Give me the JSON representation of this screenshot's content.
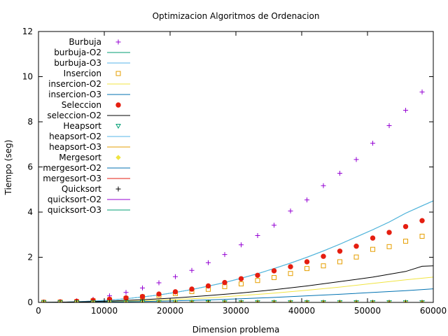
{
  "chart_data": {
    "type": "scatter",
    "title": "Optimizacion Algoritmos de Ordenacion",
    "xlabel": "Dimension problema",
    "ylabel": "Tiempo (seg)",
    "xlim": [
      0,
      60000
    ],
    "ylim": [
      0,
      12
    ],
    "xticks": [
      0,
      10000,
      20000,
      30000,
      40000,
      50000,
      60000
    ],
    "yticks": [
      0,
      2,
      4,
      6,
      8,
      10,
      12
    ],
    "grid": false,
    "legend_position": "top-left",
    "series": [
      {
        "name": "Burbuja",
        "style": "points",
        "marker": "plus",
        "color": "#9400d3",
        "x": [
          800,
          3300,
          5800,
          8300,
          10800,
          13300,
          15800,
          18300,
          20800,
          23300,
          25800,
          28300,
          30800,
          33300,
          35800,
          38300,
          40800,
          43300,
          45800,
          48300,
          50800,
          53300,
          55800,
          58300
        ],
        "y": [
          0.005,
          0.025,
          0.07,
          0.13,
          0.29,
          0.44,
          0.64,
          0.87,
          1.14,
          1.42,
          1.76,
          2.12,
          2.55,
          2.96,
          3.42,
          4.05,
          4.54,
          5.17,
          5.72,
          6.33,
          7.05,
          7.83,
          8.51,
          9.32
        ]
      },
      {
        "name": "burbuja-O2",
        "style": "line",
        "color": "#009e73",
        "x": [
          800,
          3300,
          5800,
          8300,
          10800,
          13300,
          15800,
          18300,
          20800,
          23300,
          25800,
          28300,
          30800,
          33300,
          35800,
          38300,
          40800,
          43300,
          45800,
          48300,
          50800,
          53300,
          55800,
          58300,
          60000
        ],
        "y": [
          0.002,
          0.01,
          0.03,
          0.06,
          0.1,
          0.16,
          0.24,
          0.33,
          0.44,
          0.57,
          0.72,
          0.88,
          1.07,
          1.27,
          1.5,
          1.74,
          2.0,
          2.28,
          2.58,
          2.9,
          3.22,
          3.56,
          3.95,
          4.28,
          4.5
        ]
      },
      {
        "name": "burbuja-O3",
        "style": "line",
        "color": "#56b4e9",
        "x": [
          800,
          3300,
          5800,
          8300,
          10800,
          13300,
          15800,
          18300,
          20800,
          23300,
          25800,
          28300,
          30800,
          33300,
          35800,
          38300,
          40800,
          43300,
          45800,
          48300,
          50800,
          53300,
          55800,
          58300,
          60000
        ],
        "y": [
          0.002,
          0.01,
          0.03,
          0.06,
          0.1,
          0.16,
          0.24,
          0.33,
          0.44,
          0.57,
          0.72,
          0.88,
          1.07,
          1.27,
          1.5,
          1.74,
          2.0,
          2.28,
          2.58,
          2.9,
          3.22,
          3.56,
          3.95,
          4.28,
          4.5
        ]
      },
      {
        "name": "Insercion",
        "style": "points",
        "marker": "square",
        "color": "#e69f00",
        "x": [
          800,
          3300,
          5800,
          8300,
          10800,
          13300,
          15800,
          18300,
          20800,
          23300,
          25800,
          28300,
          30800,
          33300,
          35800,
          38300,
          40800,
          43300,
          45800,
          48300,
          50800,
          53300,
          55800,
          58300
        ],
        "y": [
          0.003,
          0.015,
          0.03,
          0.07,
          0.11,
          0.17,
          0.24,
          0.31,
          0.39,
          0.48,
          0.58,
          0.7,
          0.82,
          0.97,
          1.1,
          1.28,
          1.5,
          1.62,
          1.8,
          2.01,
          2.35,
          2.47,
          2.71,
          2.93
        ]
      },
      {
        "name": "insercion-O2",
        "style": "line",
        "color": "#f0e442",
        "x": [
          800,
          5800,
          10800,
          15800,
          20800,
          25800,
          30800,
          35800,
          40800,
          45800,
          50800,
          55800,
          60000
        ],
        "y": [
          0.001,
          0.01,
          0.03,
          0.07,
          0.13,
          0.2,
          0.3,
          0.41,
          0.54,
          0.68,
          0.84,
          1.0,
          1.12
        ]
      },
      {
        "name": "insercion-O3",
        "style": "line",
        "color": "#0072b2",
        "x": [
          800,
          5800,
          10800,
          15800,
          20800,
          25800,
          30800,
          35800,
          40800,
          45800,
          50800,
          55800,
          60000
        ],
        "y": [
          0.001,
          0.005,
          0.02,
          0.04,
          0.07,
          0.11,
          0.16,
          0.22,
          0.29,
          0.36,
          0.44,
          0.52,
          0.6
        ]
      },
      {
        "name": "Seleccion",
        "style": "points",
        "marker": "circle",
        "color": "#e51e10",
        "x": [
          800,
          3300,
          5800,
          8300,
          10800,
          13300,
          15800,
          18300,
          20800,
          23300,
          25800,
          28300,
          30800,
          33300,
          35800,
          38300,
          40800,
          43300,
          45800,
          48300,
          50800,
          53300,
          55800,
          58300
        ],
        "y": [
          0.004,
          0.02,
          0.05,
          0.09,
          0.14,
          0.2,
          0.26,
          0.37,
          0.47,
          0.59,
          0.73,
          0.88,
          1.05,
          1.2,
          1.4,
          1.58,
          1.8,
          2.04,
          2.27,
          2.49,
          2.85,
          3.1,
          3.36,
          3.62
        ]
      },
      {
        "name": "seleccion-O2",
        "style": "line",
        "color": "#000000",
        "x": [
          800,
          5800,
          10800,
          15800,
          20800,
          25800,
          30800,
          35800,
          40800,
          45800,
          50800,
          55800,
          58300,
          60000
        ],
        "y": [
          0.002,
          0.02,
          0.06,
          0.12,
          0.2,
          0.3,
          0.42,
          0.56,
          0.73,
          0.92,
          1.12,
          1.37,
          1.6,
          1.62
        ]
      },
      {
        "name": "Heapsort",
        "style": "points",
        "marker": "triangle-down",
        "color": "#009e73",
        "x": [
          800,
          3300,
          5800,
          8300,
          10800,
          13300,
          15800,
          18300,
          20800,
          23300,
          25800,
          28300,
          30800,
          33300,
          35800,
          38300,
          40800,
          43300,
          45800,
          48300,
          50800,
          53300,
          55800,
          58300
        ],
        "y": [
          0,
          0,
          0,
          0,
          0,
          0,
          0,
          0,
          0,
          0,
          0,
          0,
          0,
          0,
          0,
          0,
          0,
          0,
          0,
          0,
          0,
          0,
          0,
          0
        ]
      },
      {
        "name": "heapsort-O2",
        "style": "line",
        "color": "#56b4e9",
        "x": [
          800,
          60000
        ],
        "y": [
          0,
          0
        ]
      },
      {
        "name": "heapsort-O3",
        "style": "line",
        "color": "#e69f00",
        "x": [
          800,
          60000
        ],
        "y": [
          0,
          0
        ]
      },
      {
        "name": "Mergesort",
        "style": "points",
        "marker": "diamond",
        "color": "#f0e442",
        "x": [
          800,
          3300,
          5800,
          8300,
          10800,
          13300,
          15800,
          18300,
          20800,
          23300,
          25800,
          28300,
          30800,
          33300,
          35800,
          38300,
          40800,
          43300,
          45800,
          48300,
          50800,
          53300,
          55800,
          58300
        ],
        "y": [
          0,
          0,
          0,
          0,
          0,
          0,
          0,
          0,
          0,
          0,
          0,
          0,
          0,
          0,
          0,
          0,
          0,
          0,
          0,
          0,
          0,
          0,
          0,
          0
        ]
      },
      {
        "name": "mergesort-O2",
        "style": "line",
        "color": "#0072b2",
        "x": [
          800,
          60000
        ],
        "y": [
          0,
          0
        ]
      },
      {
        "name": "mergesort-O3",
        "style": "line",
        "color": "#e51e10",
        "x": [
          800,
          60000
        ],
        "y": [
          0,
          0
        ]
      },
      {
        "name": "Quicksort",
        "style": "points",
        "marker": "plus",
        "color": "#000000",
        "x": [
          800,
          3300,
          5800,
          8300,
          10800,
          13300,
          15800,
          18300,
          20800,
          23300,
          25800,
          28300,
          30800,
          33300,
          35800,
          38300,
          40800,
          43300,
          45800,
          48300,
          50800,
          53300,
          55800,
          58300
        ],
        "y": [
          0,
          0,
          0,
          0,
          0,
          0,
          0,
          0,
          0,
          0,
          0,
          0,
          0,
          0,
          0,
          0,
          0,
          0,
          0,
          0,
          0,
          0,
          0,
          0
        ]
      },
      {
        "name": "quicksort-O2",
        "style": "line",
        "color": "#9400d3",
        "x": [
          800,
          60000
        ],
        "y": [
          0,
          0
        ]
      },
      {
        "name": "quicksort-O3",
        "style": "line",
        "color": "#009e73",
        "x": [
          800,
          60000
        ],
        "y": [
          0,
          0
        ]
      }
    ]
  }
}
